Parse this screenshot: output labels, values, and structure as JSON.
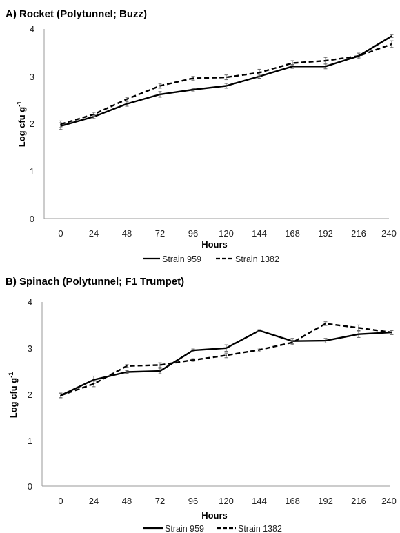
{
  "chart_data": [
    {
      "type": "line",
      "title": "A) Rocket (Polytunnel; Buzz)",
      "xlabel": "Hours",
      "ylabel": "Log cfu g",
      "ylabel_sup": "-1",
      "x": [
        0,
        24,
        48,
        72,
        96,
        120,
        144,
        168,
        192,
        216,
        240
      ],
      "ylim": [
        0,
        4
      ],
      "yticks": [
        0,
        1,
        2,
        3,
        4
      ],
      "grid": false,
      "legend_position": "bottom",
      "series": [
        {
          "name": "Strain 959",
          "style": "solid",
          "color": "#000000",
          "values": [
            1.95,
            2.15,
            2.42,
            2.62,
            2.72,
            2.8,
            3.0,
            3.21,
            3.21,
            3.43,
            3.85
          ],
          "errors": [
            0.07,
            0.04,
            0.05,
            0.06,
            0.03,
            0.05,
            0.04,
            0.04,
            0.05,
            0.04,
            0.03
          ]
        },
        {
          "name": "Strain 1382",
          "style": "dashed",
          "color": "#000000",
          "values": [
            1.99,
            2.2,
            2.52,
            2.8,
            2.96,
            2.98,
            3.08,
            3.28,
            3.33,
            3.43,
            3.68
          ],
          "errors": [
            0.07,
            0.04,
            0.04,
            0.05,
            0.04,
            0.05,
            0.07,
            0.05,
            0.07,
            0.06,
            0.07
          ]
        }
      ]
    },
    {
      "type": "line",
      "title": "B) Spinach (Polytunnel; F1 Trumpet)",
      "xlabel": "Hours",
      "ylabel": "Log cfu g",
      "ylabel_sup": "-1",
      "x": [
        0,
        24,
        48,
        72,
        96,
        120,
        144,
        168,
        192,
        216,
        240
      ],
      "ylim": [
        0,
        4
      ],
      "yticks": [
        0,
        1,
        2,
        3,
        4
      ],
      "grid": false,
      "legend_position": "bottom",
      "series": [
        {
          "name": "Strain 959",
          "style": "solid",
          "color": "#000000",
          "values": [
            1.97,
            2.31,
            2.48,
            2.5,
            2.95,
            3.0,
            3.38,
            3.15,
            3.16,
            3.3,
            3.34
          ],
          "errors": [
            0.05,
            0.08,
            0.03,
            0.06,
            0.03,
            0.07,
            0.02,
            0.06,
            0.05,
            0.07,
            0.05
          ]
        },
        {
          "name": "Strain 1382",
          "style": "dashed",
          "color": "#000000",
          "values": [
            1.97,
            2.22,
            2.61,
            2.63,
            2.74,
            2.84,
            2.96,
            3.12,
            3.53,
            3.44,
            3.34
          ],
          "errors": [
            0.05,
            0.06,
            0.03,
            0.05,
            0.03,
            0.05,
            0.04,
            0.05,
            0.04,
            0.06,
            0.04
          ]
        }
      ]
    }
  ]
}
